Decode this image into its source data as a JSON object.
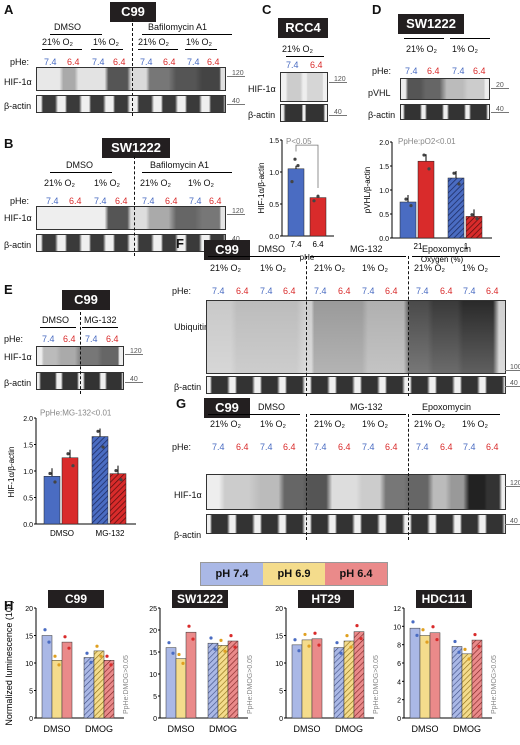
{
  "labels": {
    "A": "A",
    "B": "B",
    "C": "C",
    "D": "D",
    "E": "E",
    "F": "F",
    "G": "G",
    "H": "H"
  },
  "common": {
    "phe": "pHe:",
    "hif": "HIF-1α",
    "actin": "β-actin",
    "ubiquitin": "Ubiquitin",
    "ph74": "7.4",
    "ph64": "6.4",
    "o21": "21% O₂",
    "o1": "1% O₂",
    "dmso": "DMSO",
    "baf": "Bafilomycin A1",
    "mg": "MG-132",
    "epox": "Epoxomycin",
    "pvhl": "pVHL"
  },
  "cells": {
    "c99": "C99",
    "sw1222": "SW1222",
    "rcc4": "RCC4",
    "ht29": "HT29",
    "hdc111": "HDC111"
  },
  "markers": {
    "m120": "120",
    "m40": "40",
    "m20": "20",
    "m100": "100"
  },
  "panel_c": {
    "o2": "21% O₂",
    "pval": "P<0.05",
    "ylabel": "HIF-1α/β-actin",
    "xlabel": "pHe",
    "ticks": [
      "1.5",
      "1.0",
      "0.5",
      "0.0"
    ],
    "x": [
      "7.4",
      "6.4"
    ]
  },
  "panel_d": {
    "pval": "PpHe:pO2<0.01",
    "ylabel": "pVHL/β-actin",
    "xlabel": "Oxygen (%)",
    "ticks": [
      "2.0",
      "1.5",
      "1.0",
      "0.5",
      "0.0"
    ],
    "x": [
      "21",
      "1"
    ]
  },
  "panel_e": {
    "pval": "PpHe:MG-132<0.01",
    "ylabel": "HIF-1α/β-actin",
    "ticks": [
      "2.0",
      "1.5",
      "1.0",
      "0.5",
      "0.0"
    ],
    "x": [
      "DMSO",
      "MG-132"
    ]
  },
  "panel_h": {
    "legend": [
      "pH 7.4",
      "pH 6.9",
      "pH 6.4"
    ],
    "colors": {
      "ph74": "#aab8e6",
      "ph69": "#f4dc8c",
      "ph64": "#ea8a8a"
    },
    "ylabel": "Normalized luminescence (10⁵)",
    "pval": "PpHe:DMOG>0.05",
    "x": [
      "DMSO",
      "DMOG"
    ]
  },
  "chart_data": [
    {
      "type": "bar",
      "title": "RCC4",
      "xlabel": "pHe",
      "ylabel": "HIF-1α/β-actin",
      "categories": [
        "7.4",
        "6.4"
      ],
      "values": [
        1.05,
        0.6
      ],
      "ylim": [
        0,
        1.5
      ]
    },
    {
      "type": "bar",
      "title": "SW1222",
      "xlabel": "Oxygen (%)",
      "ylabel": "pVHL/β-actin",
      "categories": [
        "21",
        "1"
      ],
      "series": [
        {
          "name": "7.4",
          "values": [
            0.75,
            1.25
          ]
        },
        {
          "name": "6.4",
          "values": [
            1.6,
            0.45
          ]
        }
      ],
      "ylim": [
        0,
        2.0
      ]
    },
    {
      "type": "bar",
      "title": "C99",
      "ylabel": "HIF-1α/β-actin",
      "categories": [
        "DMSO",
        "MG-132"
      ],
      "series": [
        {
          "name": "7.4",
          "values": [
            0.9,
            1.65
          ]
        },
        {
          "name": "6.4",
          "values": [
            1.25,
            0.95
          ]
        }
      ],
      "ylim": [
        0,
        2.0
      ]
    },
    {
      "type": "bar",
      "title": "C99",
      "ylabel": "Normalized luminescence (10⁵)",
      "categories": [
        "DMSO",
        "DMOG"
      ],
      "series": [
        {
          "name": "pH 7.4",
          "values": [
            15,
            11
          ]
        },
        {
          "name": "pH 6.9",
          "values": [
            10.5,
            12.2
          ]
        },
        {
          "name": "pH 6.4",
          "values": [
            13.8,
            10.5
          ]
        }
      ],
      "ylim": [
        0,
        20
      ]
    },
    {
      "type": "bar",
      "title": "SW1222",
      "ylabel": "Normalized luminescence (10⁵)",
      "categories": [
        "DMSO",
        "DMOG"
      ],
      "series": [
        {
          "name": "pH 7.4",
          "values": [
            16,
            17
          ]
        },
        {
          "name": "pH 6.9",
          "values": [
            13.5,
            16.5
          ]
        },
        {
          "name": "pH 6.4",
          "values": [
            19.5,
            17.5
          ]
        }
      ],
      "ylim": [
        0,
        25
      ]
    },
    {
      "type": "bar",
      "title": "HT29",
      "ylabel": "Normalized luminescence (10⁵)",
      "categories": [
        "DMSO",
        "DMOG"
      ],
      "series": [
        {
          "name": "pH 7.4",
          "values": [
            13.3,
            12.8
          ]
        },
        {
          "name": "pH 6.9",
          "values": [
            14.2,
            14
          ]
        },
        {
          "name": "pH 6.4",
          "values": [
            14.4,
            15.7
          ]
        }
      ],
      "ylim": [
        0,
        20
      ]
    },
    {
      "type": "bar",
      "title": "HDC111",
      "ylabel": "Normalized luminescence (10⁵)",
      "categories": [
        "DMSO",
        "DMOG"
      ],
      "series": [
        {
          "name": "pH 7.4",
          "values": [
            9.8,
            7.8
          ]
        },
        {
          "name": "pH 6.9",
          "values": [
            9,
            7
          ]
        },
        {
          "name": "pH 6.4",
          "values": [
            9.3,
            8.5
          ]
        }
      ],
      "ylim": [
        0,
        12
      ]
    }
  ]
}
